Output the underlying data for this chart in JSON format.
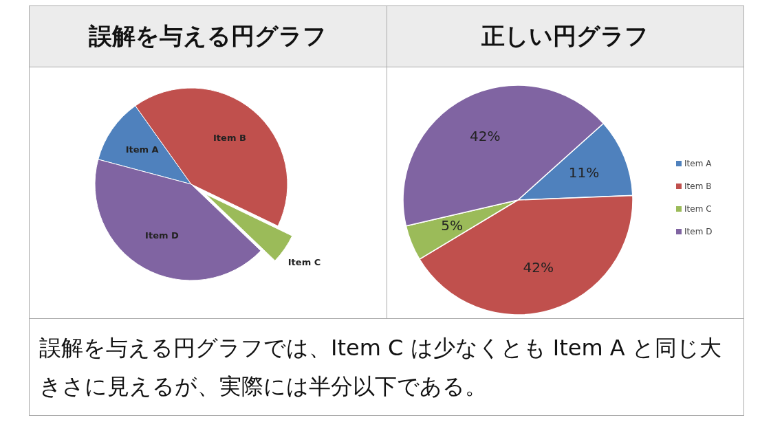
{
  "chart_data": [
    {
      "type": "pie",
      "title": "誤解を与える円グラフ",
      "categories": [
        "Item A",
        "Item B",
        "Item C",
        "Item D"
      ],
      "values": [
        11,
        42,
        5,
        42
      ],
      "colors": [
        "#4f81bd",
        "#c0504d",
        "#9bbb59",
        "#8064a2"
      ],
      "annotations": [
        "誤解を与える円グラフでは、Item C は少なくとも Item A と同じ大きさに見えるが、実際には半分以下である。"
      ]
    },
    {
      "type": "pie",
      "title": "正しい円グラフ",
      "categories": [
        "Item A",
        "Item B",
        "Item C",
        "Item D"
      ],
      "values": [
        11,
        42,
        5,
        42
      ],
      "colors": [
        "#4f81bd",
        "#c0504d",
        "#9bbb59",
        "#8064a2"
      ],
      "value_labels": [
        "11%",
        "42%",
        "5%",
        "42%"
      ],
      "legend": "right"
    }
  ]
}
